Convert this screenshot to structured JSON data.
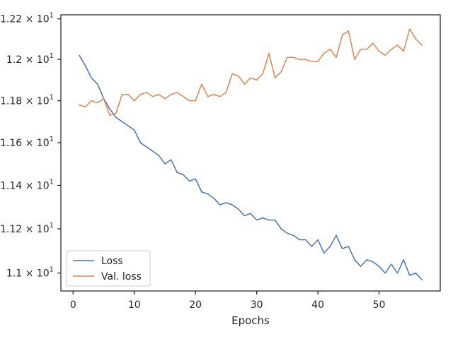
{
  "chart_data": {
    "type": "line",
    "title": "",
    "xlabel": "Epochs",
    "ylabel": "",
    "xlim": [
      -2,
      60
    ],
    "ylim": [
      10.92,
      12.22
    ],
    "x_ticks": [
      0,
      10,
      20,
      30,
      40,
      50
    ],
    "x_tick_labels": [
      "0",
      "10",
      "20",
      "30",
      "40",
      "50"
    ],
    "y_ticks": [
      11.0,
      11.2,
      11.4,
      11.6,
      11.8,
      12.0,
      12.2
    ],
    "y_tick_labels": [
      {
        "mant": "1.1",
        "exp": "1"
      },
      {
        "mant": "1.12",
        "exp": "1"
      },
      {
        "mant": "1.14",
        "exp": "1"
      },
      {
        "mant": "1.16",
        "exp": "1"
      },
      {
        "mant": "1.18",
        "exp": "1"
      },
      {
        "mant": "1.2",
        "exp": "1"
      },
      {
        "mant": "1.22",
        "exp": "1"
      }
    ],
    "y_scale": "log",
    "grid": false,
    "legend_position": "lower-left",
    "series": [
      {
        "name": "Loss",
        "color": "#4c72b0",
        "x": [
          1,
          2,
          3,
          4,
          5,
          6,
          7,
          8,
          9,
          10,
          11,
          12,
          13,
          14,
          15,
          16,
          17,
          18,
          19,
          20,
          21,
          22,
          23,
          24,
          25,
          26,
          27,
          28,
          29,
          30,
          31,
          32,
          33,
          34,
          35,
          36,
          37,
          38,
          39,
          40,
          41,
          42,
          43,
          44,
          45,
          46,
          47,
          48,
          49,
          50,
          51,
          52,
          53,
          54,
          55,
          56,
          57
        ],
        "values": [
          12.02,
          11.97,
          11.91,
          11.88,
          11.81,
          11.76,
          11.72,
          11.7,
          11.68,
          11.66,
          11.6,
          11.58,
          11.56,
          11.54,
          11.5,
          11.52,
          11.46,
          11.45,
          11.42,
          11.43,
          11.37,
          11.36,
          11.34,
          11.31,
          11.32,
          11.31,
          11.29,
          11.26,
          11.27,
          11.24,
          11.25,
          11.24,
          11.24,
          11.2,
          11.18,
          11.17,
          11.15,
          11.15,
          11.12,
          11.15,
          11.09,
          11.12,
          11.17,
          11.11,
          11.12,
          11.06,
          11.03,
          11.06,
          11.05,
          11.03,
          11.0,
          11.04,
          11.0,
          11.06,
          10.99,
          11.0,
          10.97
        ]
      },
      {
        "name": "Val. loss",
        "color": "#dd8452",
        "x": [
          1,
          2,
          3,
          4,
          5,
          6,
          7,
          8,
          9,
          10,
          11,
          12,
          13,
          14,
          15,
          16,
          17,
          18,
          19,
          20,
          21,
          22,
          23,
          24,
          25,
          26,
          27,
          28,
          29,
          30,
          31,
          32,
          33,
          34,
          35,
          36,
          37,
          38,
          39,
          40,
          41,
          42,
          43,
          44,
          45,
          46,
          47,
          48,
          49,
          50,
          51,
          52,
          53,
          54,
          55,
          56,
          57
        ],
        "values": [
          11.78,
          11.77,
          11.8,
          11.79,
          11.81,
          11.73,
          11.74,
          11.83,
          11.83,
          11.8,
          11.83,
          11.84,
          11.82,
          11.83,
          11.81,
          11.83,
          11.84,
          11.82,
          11.8,
          11.8,
          11.88,
          11.82,
          11.83,
          11.82,
          11.84,
          11.93,
          11.92,
          11.88,
          11.91,
          11.9,
          11.93,
          12.03,
          11.91,
          11.94,
          12.01,
          12.01,
          12.0,
          12.0,
          11.99,
          11.99,
          12.03,
          12.05,
          12.01,
          12.12,
          12.14,
          12.0,
          12.05,
          12.05,
          12.08,
          12.04,
          12.02,
          12.05,
          12.07,
          12.04,
          12.15,
          12.1,
          12.07
        ]
      }
    ]
  }
}
